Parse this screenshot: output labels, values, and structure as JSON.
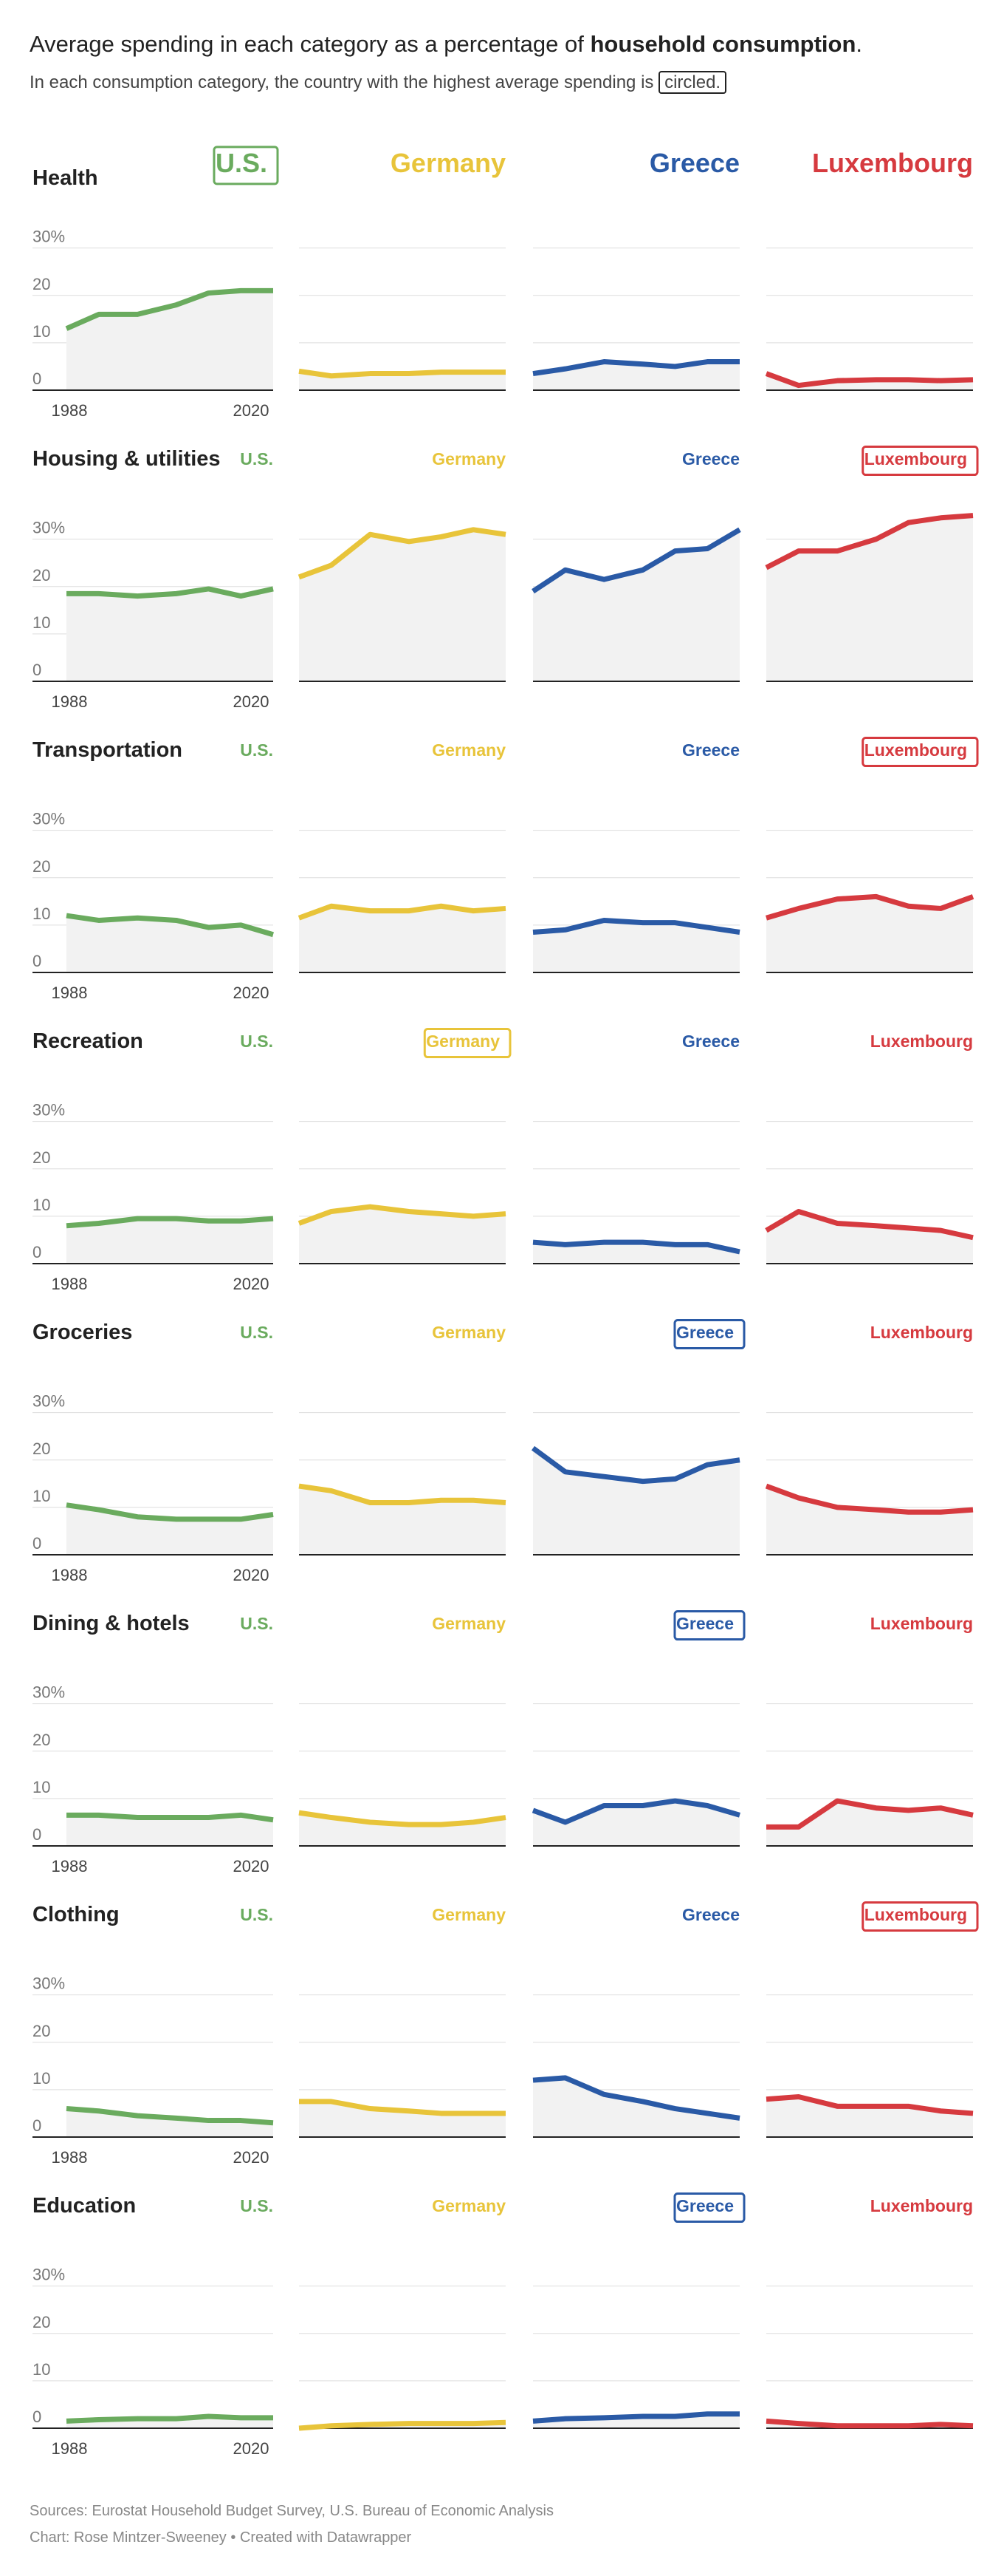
{
  "header": {
    "title_prefix": "Average spending in each category as a percentage of ",
    "title_bold": "household consumption",
    "title_suffix": ".",
    "subtitle_prefix": "In each consumption category, the country with the highest average spending is ",
    "subtitle_circled": "circled."
  },
  "footer": {
    "sources": "Sources: Eurostat Household Budget Survey, U.S. Bureau of Economic Analysis",
    "credit": "Chart: Rose Mintzer-Sweeney • Created with Datawrapper"
  },
  "colors": {
    "U.S.": "#6aab5e",
    "Germany": "#e8c43a",
    "Greece": "#2a5aa6",
    "Luxembourg": "#d63a3f",
    "area": "#f2f2f2",
    "grid": "#dddddd",
    "baseline": "#222222",
    "axis_text": "#777777"
  },
  "chart_data": {
    "type": "area",
    "layout": "small-multiples",
    "countries": [
      "U.S.",
      "Germany",
      "Greece",
      "Luxembourg"
    ],
    "x": [
      1988,
      1993,
      1999,
      2005,
      2010,
      2015,
      2020
    ],
    "x_tick_labels": [
      "1988",
      "2020"
    ],
    "y_ticks": [
      0,
      10,
      20,
      30
    ],
    "y_tick_labels": [
      "0",
      "10",
      "20",
      "30%"
    ],
    "ylim": [
      0,
      34
    ],
    "grid": true,
    "categories": [
      {
        "name": "Health",
        "circled": "U.S.",
        "series": {
          "U.S.": [
            13,
            16,
            16,
            18,
            20.5,
            21,
            21
          ],
          "Germany": [
            4,
            3,
            3.5,
            3.5,
            3.8,
            3.8,
            3.8
          ],
          "Greece": [
            3.5,
            4.5,
            6,
            5.5,
            5,
            6,
            6
          ],
          "Luxembourg": [
            3.5,
            1,
            2,
            2.2,
            2.2,
            2,
            2.2
          ]
        }
      },
      {
        "name": "Housing & utilities",
        "circled": "Luxembourg",
        "series": {
          "U.S.": [
            18.5,
            18.5,
            18,
            18.5,
            19.5,
            18,
            19.5
          ],
          "Germany": [
            22,
            24.5,
            31,
            29.5,
            30.5,
            32,
            31
          ],
          "Greece": [
            19,
            23.5,
            21.5,
            23.5,
            27.5,
            28,
            32
          ],
          "Luxembourg": [
            24,
            27.5,
            27.5,
            30,
            33.5,
            34.5,
            35
          ]
        }
      },
      {
        "name": "Transportation",
        "circled": "Luxembourg",
        "series": {
          "U.S.": [
            12,
            11,
            11.5,
            11,
            9.5,
            10,
            8
          ],
          "Germany": [
            11.5,
            14,
            13,
            13,
            14,
            13,
            13.5
          ],
          "Greece": [
            8.5,
            9,
            11,
            10.5,
            10.5,
            9.5,
            8.5
          ],
          "Luxembourg": [
            11.5,
            13.5,
            15.5,
            16,
            14,
            13.5,
            16
          ]
        }
      },
      {
        "name": "Recreation",
        "circled": "Germany",
        "series": {
          "U.S.": [
            8,
            8.5,
            9.5,
            9.5,
            9,
            9,
            9.5
          ],
          "Germany": [
            8.5,
            11,
            12,
            11,
            10.5,
            10,
            10.5
          ],
          "Greece": [
            4.5,
            4,
            4.5,
            4.5,
            4,
            4,
            2.5
          ],
          "Luxembourg": [
            7,
            11,
            8.5,
            8,
            7.5,
            7,
            5.5
          ]
        }
      },
      {
        "name": "Groceries",
        "circled": "Greece",
        "series": {
          "U.S.": [
            10.5,
            9.5,
            8,
            7.5,
            7.5,
            7.5,
            8.5
          ],
          "Germany": [
            14.5,
            13.5,
            11,
            11,
            11.5,
            11.5,
            11
          ],
          "Greece": [
            22.5,
            17.5,
            16.5,
            15.5,
            16,
            19,
            20
          ],
          "Luxembourg": [
            14.5,
            12,
            10,
            9.5,
            9,
            9,
            9.5
          ]
        }
      },
      {
        "name": "Dining & hotels",
        "circled": "Greece",
        "series": {
          "U.S.": [
            6.5,
            6.5,
            6,
            6,
            6,
            6.5,
            5.5
          ],
          "Germany": [
            7,
            6,
            5,
            4.5,
            4.5,
            5,
            6
          ],
          "Greece": [
            7.5,
            5,
            8.5,
            8.5,
            9.5,
            8.5,
            6.5
          ],
          "Luxembourg": [
            4,
            4,
            9.5,
            8,
            7.5,
            8,
            6.5
          ]
        }
      },
      {
        "name": "Clothing",
        "circled": "Luxembourg",
        "series": {
          "U.S.": [
            6,
            5.5,
            4.5,
            4,
            3.5,
            3.5,
            3
          ],
          "Germany": [
            7.5,
            7.5,
            6,
            5.5,
            5,
            5,
            5
          ],
          "Greece": [
            12,
            12.5,
            9,
            7.5,
            6,
            5,
            4
          ],
          "Luxembourg": [
            8,
            8.5,
            6.5,
            6.5,
            6.5,
            5.5,
            5
          ]
        }
      },
      {
        "name": "Education",
        "circled": "Greece",
        "series": {
          "U.S.": [
            1.5,
            1.8,
            2,
            2,
            2.5,
            2.2,
            2.2
          ],
          "Germany": [
            0,
            0.5,
            0.8,
            1,
            1,
            1,
            1.2
          ],
          "Greece": [
            1.5,
            2,
            2.2,
            2.5,
            2.5,
            3,
            3
          ],
          "Luxembourg": [
            1.5,
            1,
            0.5,
            0.5,
            0.5,
            0.8,
            0.5
          ]
        }
      }
    ]
  }
}
